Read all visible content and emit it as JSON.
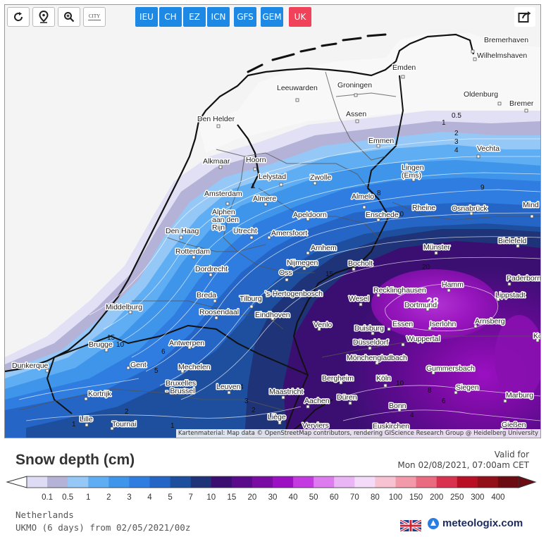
{
  "toolbar": {
    "buttons": [
      {
        "name": "refresh-button",
        "icon": "refresh-icon"
      },
      {
        "name": "location-button",
        "icon": "location-pin-icon"
      },
      {
        "name": "zoom-in-button",
        "icon": "magnifier-plus-icon"
      },
      {
        "name": "city-toggle-button",
        "icon": "city-label-icon",
        "label": "CITY"
      }
    ],
    "models": [
      {
        "label": "IEU",
        "color": "#1e88e5"
      },
      {
        "label": "CH",
        "color": "#1e88e5"
      },
      {
        "label": "EZ",
        "color": "#1e88e5"
      },
      {
        "label": "ICN",
        "color": "#1e88e5"
      },
      {
        "label": "GFS",
        "color": "#1e88e5"
      },
      {
        "label": "GEM",
        "color": "#1e88e5"
      },
      {
        "label": "UK",
        "color": "#f0435a"
      }
    ],
    "share_icon": "share-icon"
  },
  "map": {
    "credit": "Kartenmaterial: Map data © OpenStreetMap contributors, rendering GIScience Research Group @ Heidelberg University",
    "max_value": "28",
    "cities": [
      "Bremerhaven",
      "Wilhelmshaven",
      "Emden",
      "Bremer",
      "Leeuwarden",
      "Groningen",
      "Oldenburg",
      "Den Helder",
      "Assen",
      "Emmen",
      "Vechta",
      "Alkmaar",
      "Hoorn",
      "Lelystad",
      "Zwolle",
      "Lingen (Ems)",
      "Amsterdam",
      "Almere",
      "Almelo",
      "Rheine",
      "Osnabrück",
      "Mind",
      "Alphen aan den Rijn",
      "Apeldoorn",
      "Enschede",
      "Den Haag",
      "Utrecht",
      "Amersfoort",
      "Arnhem",
      "Münster",
      "Bielefeld",
      "Rotterdam",
      "Nijmegen",
      "Bocholt",
      "Dordrecht",
      "Oss",
      "Hamm",
      "Paderborn",
      "Breda",
      "'s-Hertogenbosch",
      "Recklinghausen",
      "Lippstadt",
      "Middelburg",
      "Roosendaal",
      "Tilburg",
      "Wesel",
      "Dortmund",
      "Eindhoven",
      "Arnsberg",
      "Venlo",
      "Duisburg",
      "Essen",
      "Iserlohn",
      "Korbac",
      "Brugge",
      "Antwerpen",
      "Düsseldorf",
      "Wuppertal",
      "Mönchengladbach",
      "Gent",
      "Mechelen",
      "Gummersbach",
      "Dunkerque",
      "Bruxelles - Brussel",
      "Leuven",
      "Maastricht",
      "Bergheim",
      "Köln",
      "Siegen",
      "Kortrijk",
      "Aachen",
      "Düren",
      "Bonn",
      "Marburg",
      "Lille",
      "Tournai",
      "Liège",
      "Verviers",
      "Euskirchen",
      "Gießen"
    ],
    "contour_labels": [
      "0.5",
      "1",
      "2",
      "3",
      "4",
      "5",
      "6",
      "7",
      "8",
      "9",
      "10",
      "15",
      "20",
      "28",
      "1",
      "2",
      "3",
      "4",
      "5",
      "6",
      "7"
    ]
  },
  "legend": {
    "title": "Snow depth (cm)",
    "valid_label": "Valid for",
    "valid_time": "Mon 02/08/2021, 07:00am CET",
    "values": [
      "0.1",
      "0.5",
      "1",
      "2",
      "3",
      "4",
      "5",
      "7",
      "10",
      "15",
      "20",
      "30",
      "40",
      "50",
      "60",
      "70",
      "80",
      "100",
      "150",
      "200",
      "250",
      "300",
      "400"
    ],
    "colors": [
      "#dedcf4",
      "#b4b2d6",
      "#95c8f6",
      "#5fadf2",
      "#3f95ea",
      "#2f7de0",
      "#2465c5",
      "#1d4f9e",
      "#1f3378",
      "#3b0f72",
      "#5a0b8c",
      "#7a0ba3",
      "#9b10c2",
      "#c23ae0",
      "#dc7cef",
      "#eab5f5",
      "#f4dbf9",
      "#f7c2d2",
      "#f39aaa",
      "#ea6a80",
      "#d8324e",
      "#b80f25",
      "#921018",
      "#6b0b12"
    ]
  },
  "footer": {
    "region": "Netherlands",
    "run": "UKMO (6 days) from 02/05/2021/00z",
    "brand": "meteologix.com",
    "flag_icon": "uk-flag-icon",
    "brand_icon": "meteologix-logo-icon"
  }
}
